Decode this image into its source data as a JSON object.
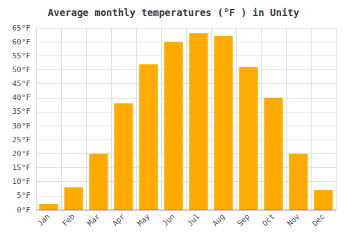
{
  "chart_data": {
    "type": "bar",
    "title": "Average monthly temperatures (°F ) in Unity",
    "categories": [
      "Jan",
      "Feb",
      "Mar",
      "Apr",
      "May",
      "Jun",
      "Jul",
      "Aug",
      "Sep",
      "Oct",
      "Nov",
      "Dec"
    ],
    "values": [
      2,
      8,
      20,
      38,
      52,
      60,
      63,
      62,
      51,
      40,
      20,
      7
    ],
    "color": "#FFAB00",
    "ylim": [
      0,
      65
    ],
    "yticks": [
      {
        "value": 0,
        "label": "0°F"
      },
      {
        "value": 5,
        "label": "5°F"
      },
      {
        "value": 10,
        "label": "10°F"
      },
      {
        "value": 15,
        "label": "15°F"
      },
      {
        "value": 20,
        "label": "20°F"
      },
      {
        "value": 25,
        "label": "25°F"
      },
      {
        "value": 30,
        "label": "30°F"
      },
      {
        "value": 35,
        "label": "35°F"
      },
      {
        "value": 40,
        "label": "40°F"
      },
      {
        "value": 45,
        "label": "45°F"
      },
      {
        "value": 50,
        "label": "50°F"
      },
      {
        "value": 55,
        "label": "55°F"
      },
      {
        "value": 60,
        "label": "60°F"
      },
      {
        "value": 65,
        "label": "65°F"
      }
    ],
    "grid": true
  }
}
